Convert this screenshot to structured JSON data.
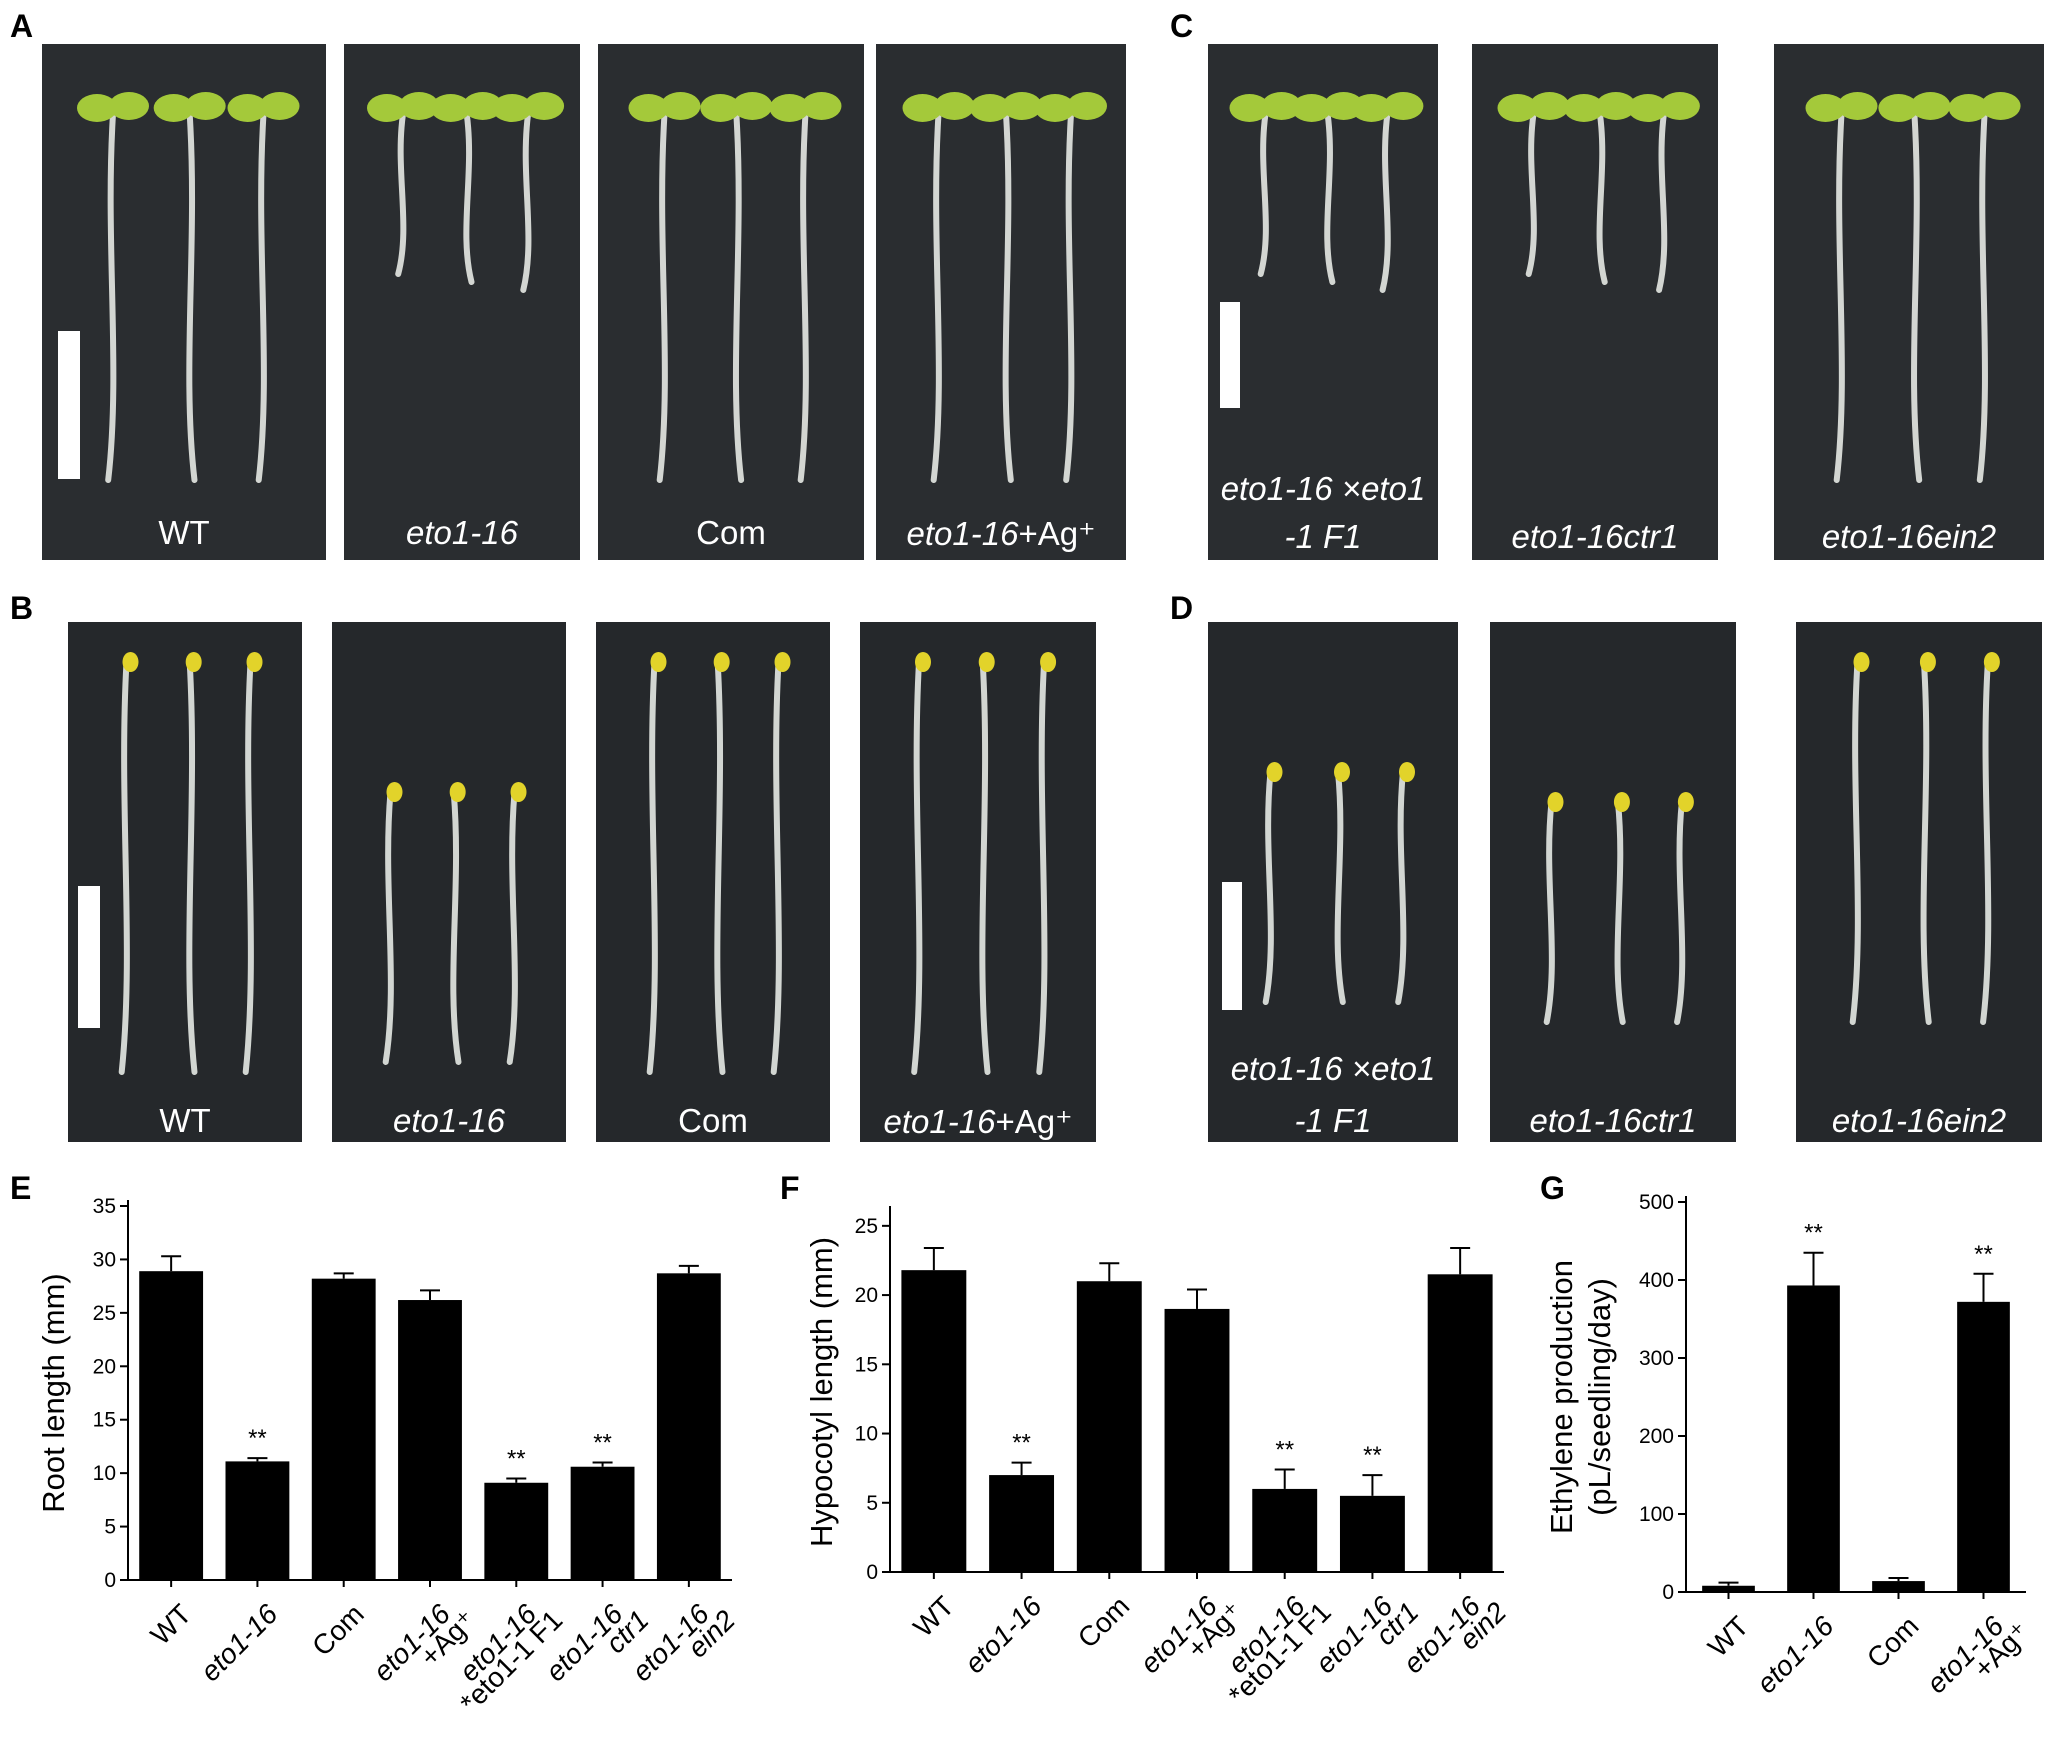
{
  "panels": {
    "A": {
      "label": "A",
      "captions": [
        {
          "text": "WT",
          "italic": false
        },
        {
          "text": "eto1-16",
          "italic": true
        },
        {
          "text": "Com",
          "italic": false
        },
        {
          "text": "eto1-16",
          "italic": true,
          "suffix": "+Ag⁺"
        }
      ]
    },
    "B": {
      "label": "B",
      "captions": [
        {
          "text": "WT",
          "italic": false
        },
        {
          "text": "eto1-16",
          "italic": true
        },
        {
          "text": "Com",
          "italic": false
        },
        {
          "text": "eto1-16",
          "italic": true,
          "suffix": "+Ag⁺"
        }
      ]
    },
    "C": {
      "label": "C",
      "captions": [
        {
          "text": "eto1-16 ×eto1",
          "line2": "-1   F1"
        },
        {
          "text": "eto1-16ctr1"
        },
        {
          "text": "eto1-16ein2"
        }
      ]
    },
    "D": {
      "label": "D",
      "captions": [
        {
          "text": "eto1-16 ×eto1",
          "line2": "-1   F1"
        },
        {
          "text": "eto1-16ctr1"
        },
        {
          "text": "eto1-16ein2"
        }
      ]
    }
  },
  "colors": {
    "seedling_green": "#a4c93a",
    "seedling_stem": "#e6e9e4",
    "cotyledon_yellow": "#e2d32a",
    "bar_fill": "#000000"
  },
  "chart_data": [
    {
      "panel": "E",
      "type": "bar",
      "ylabel": "Root length (mm)",
      "ylim": [
        0,
        35
      ],
      "yticks": [
        0,
        5,
        10,
        15,
        20,
        25,
        30,
        35
      ],
      "categories": [
        {
          "lines": [
            "WT"
          ],
          "italic": [
            false
          ]
        },
        {
          "lines": [
            "eto1-16"
          ],
          "italic": [
            true
          ]
        },
        {
          "lines": [
            "Com"
          ],
          "italic": [
            false
          ]
        },
        {
          "lines": [
            "eto1-16",
            "+Ag⁺"
          ],
          "italic": [
            true,
            false
          ]
        },
        {
          "lines": [
            "eto1-16",
            "*eto1-1 F1"
          ],
          "italic": [
            true,
            false
          ]
        },
        {
          "lines": [
            "eto1-16",
            "ctr1"
          ],
          "italic": [
            true,
            true
          ]
        },
        {
          "lines": [
            "eto1-16",
            "ein2"
          ],
          "italic": [
            true,
            true
          ]
        }
      ],
      "values": [
        28.9,
        11.1,
        28.2,
        26.2,
        9.1,
        10.6,
        28.7
      ],
      "errors": [
        1.4,
        0.3,
        0.5,
        0.9,
        0.4,
        0.4,
        0.7
      ],
      "annotations": [
        "",
        "**",
        "",
        "",
        "**",
        "**",
        ""
      ]
    },
    {
      "panel": "F",
      "type": "bar",
      "ylabel": "Hypocotyl length (mm)",
      "ylim": [
        0,
        26
      ],
      "yticks": [
        0,
        5,
        10,
        15,
        20,
        25
      ],
      "categories": [
        {
          "lines": [
            "WT"
          ],
          "italic": [
            false
          ]
        },
        {
          "lines": [
            "eto1-16"
          ],
          "italic": [
            true
          ]
        },
        {
          "lines": [
            "Com"
          ],
          "italic": [
            false
          ]
        },
        {
          "lines": [
            "eto1-16",
            "+Ag⁺"
          ],
          "italic": [
            true,
            false
          ]
        },
        {
          "lines": [
            "eto1-16",
            "*eto1-1 F1"
          ],
          "italic": [
            true,
            false
          ]
        },
        {
          "lines": [
            "eto1-16",
            "ctr1"
          ],
          "italic": [
            true,
            true
          ]
        },
        {
          "lines": [
            "eto1-16",
            "ein2"
          ],
          "italic": [
            true,
            true
          ]
        }
      ],
      "values": [
        21.8,
        7.0,
        21.0,
        19.0,
        6.0,
        5.5,
        21.5
      ],
      "errors": [
        1.6,
        0.9,
        1.3,
        1.4,
        1.4,
        1.5,
        1.9
      ],
      "annotations": [
        "",
        "**",
        "",
        "",
        "**",
        "**",
        ""
      ]
    },
    {
      "panel": "G",
      "type": "bar",
      "ylabel": "Ethylene production",
      "ylabel2": "(pL/seedling/day)",
      "ylim": [
        0,
        500
      ],
      "yticks": [
        0,
        100,
        200,
        300,
        400,
        500
      ],
      "categories": [
        {
          "lines": [
            "WT"
          ],
          "italic": [
            false
          ]
        },
        {
          "lines": [
            "eto1-16"
          ],
          "italic": [
            true
          ]
        },
        {
          "lines": [
            "Com"
          ],
          "italic": [
            false
          ]
        },
        {
          "lines": [
            "eto1-16",
            "+Ag⁺"
          ],
          "italic": [
            true,
            false
          ]
        }
      ],
      "values": [
        8,
        393,
        14,
        372
      ],
      "errors": [
        4,
        42,
        4,
        36
      ],
      "annotations": [
        "",
        "**",
        "",
        "**"
      ]
    }
  ]
}
